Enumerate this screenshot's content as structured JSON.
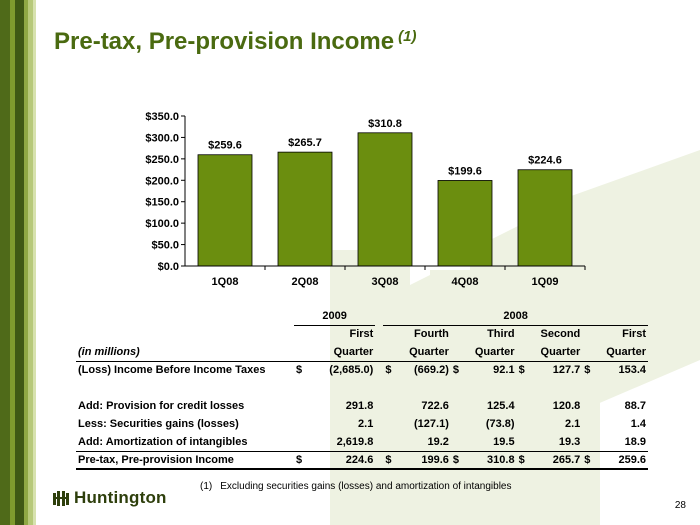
{
  "title": "Pre-tax, Pre-provision Income",
  "title_note": "(1)",
  "colors": {
    "bar": "#6b8e0f",
    "title": "#4a6a10"
  },
  "chart_data": {
    "type": "bar",
    "categories": [
      "1Q08",
      "2Q08",
      "3Q08",
      "4Q08",
      "1Q09"
    ],
    "values": [
      259.6,
      265.7,
      310.8,
      199.6,
      224.6
    ],
    "data_labels": [
      "$259.6",
      "$265.7",
      "$310.8",
      "$199.6",
      "$224.6"
    ],
    "yticks": [
      "$0.0",
      "$50.0",
      "$100.0",
      "$150.0",
      "$200.0",
      "$250.0",
      "$300.0",
      "$350.0"
    ],
    "ylim": [
      0,
      350
    ],
    "title": "",
    "xlabel": "",
    "ylabel": "",
    "grid": false
  },
  "table": {
    "year_2009": "2009",
    "year_2008": "2008",
    "units_label": "(in millions)",
    "col_line1": [
      "First",
      "Fourth",
      "Third",
      "Second",
      "First"
    ],
    "col_line2": [
      "Quarter",
      "Quarter",
      "Quarter",
      "Quarter",
      "Quarter"
    ],
    "rows": [
      {
        "label": "(Loss) Income Before Income Taxes",
        "cells": [
          [
            "$",
            "(2,685.0)"
          ],
          [
            "$",
            "(669.2)"
          ],
          [
            "$",
            "92.1"
          ],
          [
            "$",
            "127.7"
          ],
          [
            "$",
            "153.4"
          ]
        ]
      },
      {
        "label": "Add:  Provision for credit losses",
        "cells": [
          [
            "",
            "291.8"
          ],
          [
            "",
            "722.6"
          ],
          [
            "",
            "125.4"
          ],
          [
            "",
            "120.8"
          ],
          [
            "",
            "88.7"
          ]
        ]
      },
      {
        "label": "Less:  Securities gains (losses)",
        "cells": [
          [
            "",
            "2.1"
          ],
          [
            "",
            "(127.1)"
          ],
          [
            "",
            "(73.8)"
          ],
          [
            "",
            "2.1"
          ],
          [
            "",
            "1.4"
          ]
        ]
      },
      {
        "label": "Add:  Amortization of intangibles",
        "cells": [
          [
            "",
            "2,619.8"
          ],
          [
            "",
            "19.2"
          ],
          [
            "",
            "19.5"
          ],
          [
            "",
            "19.3"
          ],
          [
            "",
            "18.9"
          ]
        ]
      },
      {
        "label": "Pre-tax, Pre-provision Income",
        "cells": [
          [
            "$",
            "224.6"
          ],
          [
            "$",
            "199.6"
          ],
          [
            "$",
            "310.8"
          ],
          [
            "$",
            "265.7"
          ],
          [
            "$",
            "259.6"
          ]
        ]
      }
    ]
  },
  "footnote": {
    "number": "(1)",
    "text": "Excluding securities gains (losses) and amortization of intangibles"
  },
  "logo_text": "Huntington",
  "page_number": "28"
}
